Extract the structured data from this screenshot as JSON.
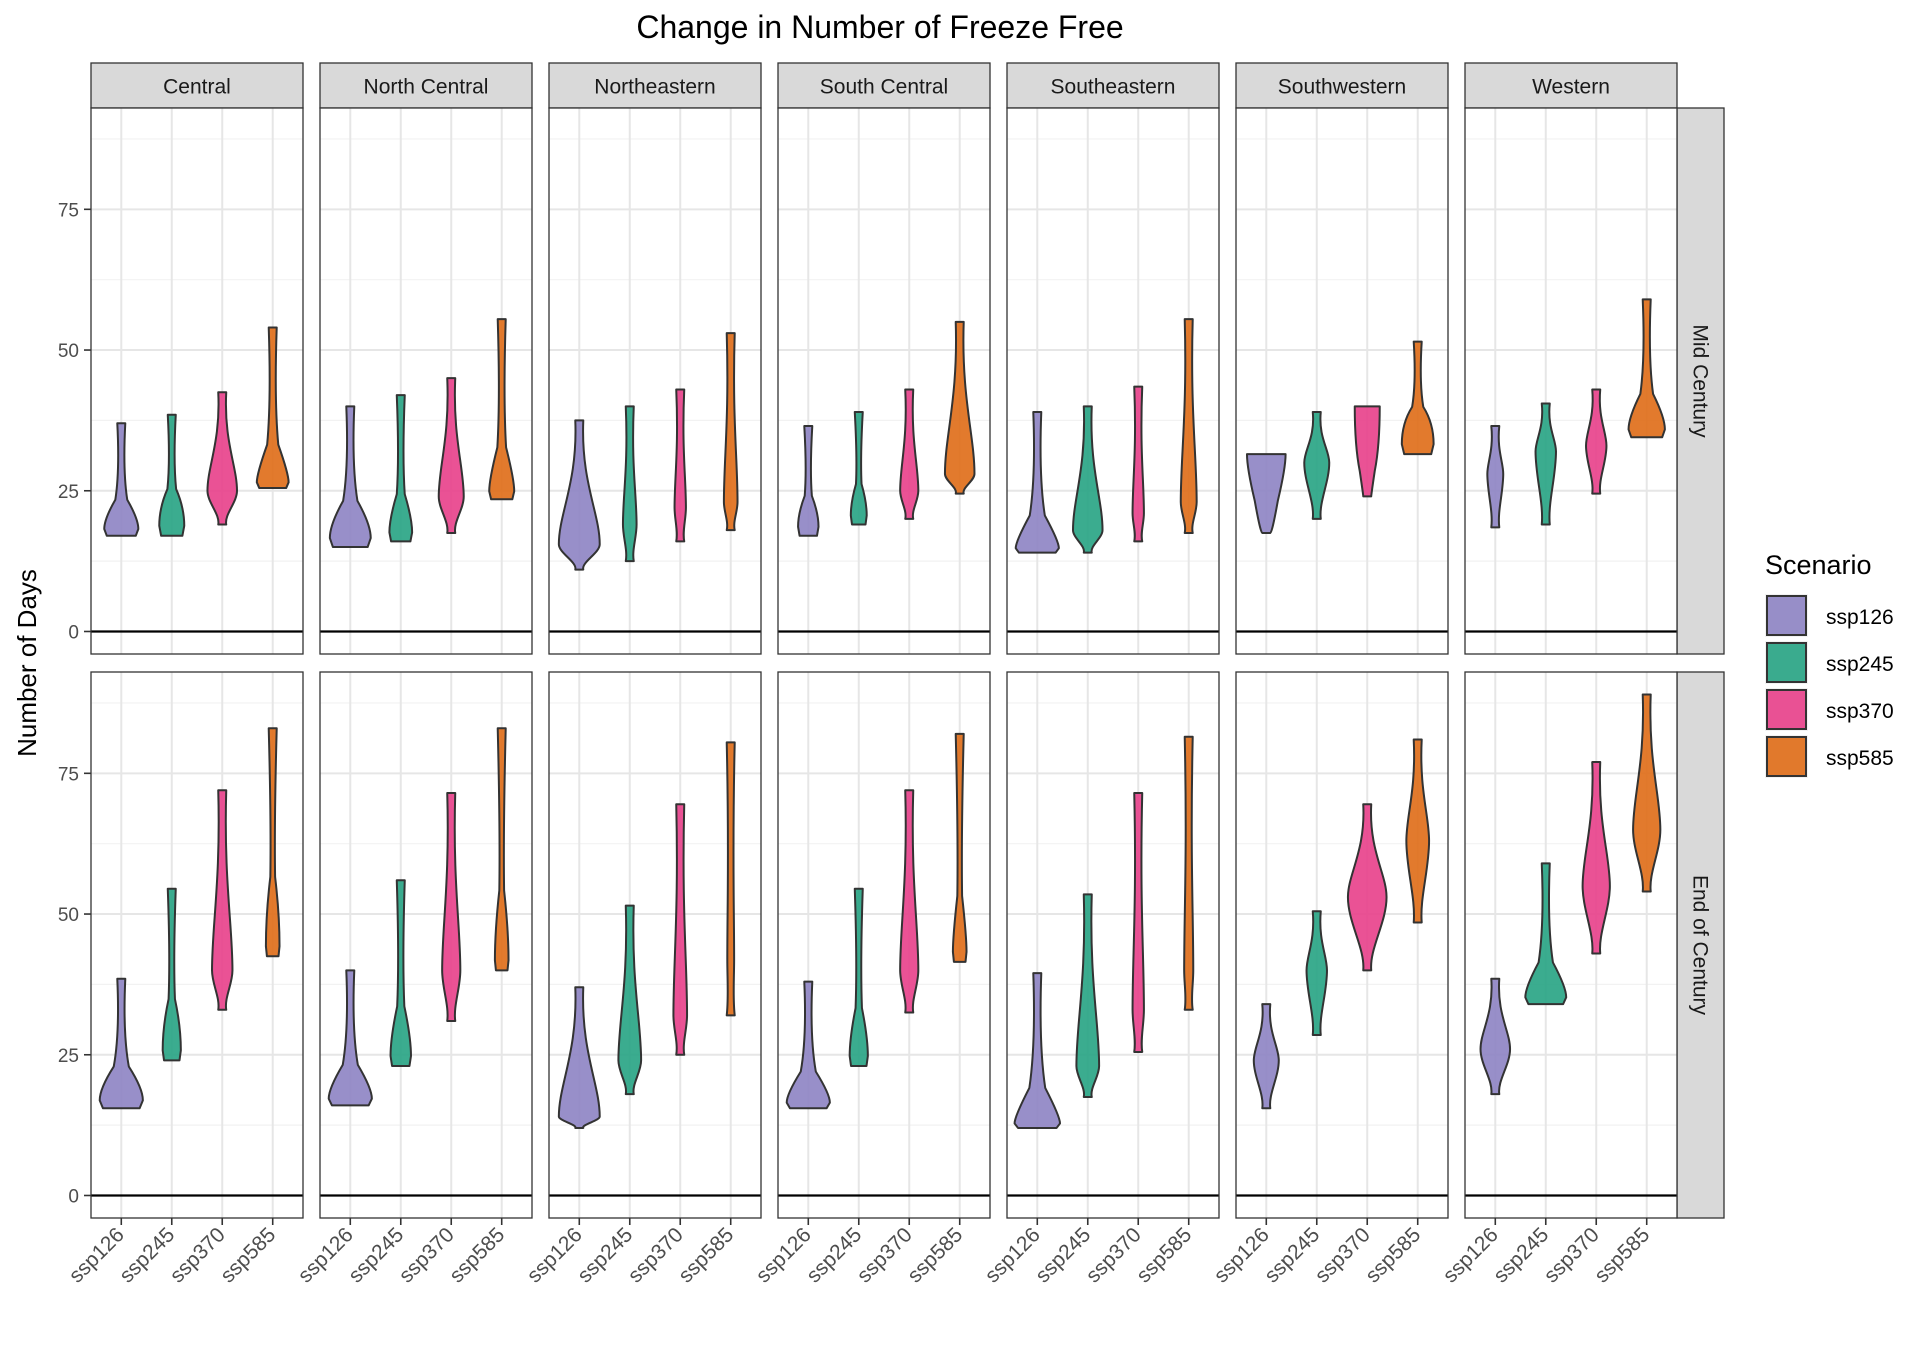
{
  "chart_data": {
    "type": "violin",
    "title": "Change in Number of Freeze Free",
    "ylabel": "Number of Days",
    "xlabel": "",
    "ylim": [
      -4,
      93
    ],
    "yticks": [
      0,
      25,
      50,
      75
    ],
    "grid": true,
    "reference_line_y": 0,
    "legend": {
      "title": "Scenario",
      "position": "right"
    },
    "categories": [
      "ssp126",
      "ssp245",
      "ssp370",
      "ssp585"
    ],
    "colors": {
      "ssp126": "#8F86C4",
      "ssp245": "#2AA585",
      "ssp370": "#E8438C",
      "ssp585": "#DF6F1B"
    },
    "columns": [
      "Central",
      "North Central",
      "Northeastern",
      "South Central",
      "Southeastern",
      "Southwestern",
      "Western"
    ],
    "rows": [
      "Mid Century",
      "End of Century"
    ],
    "panels": [
      {
        "row": "Mid Century",
        "column": "Central",
        "violins": [
          {
            "scenario": "ssp126",
            "min": 17,
            "max": 37,
            "peak": 20,
            "width": 0.75,
            "shape": "bottom"
          },
          {
            "scenario": "ssp245",
            "min": 17,
            "max": 38.5,
            "peak": 22,
            "width": 0.55,
            "shape": "bottom"
          },
          {
            "scenario": "ssp370",
            "min": 19,
            "max": 42.5,
            "peak": 25,
            "width": 0.65,
            "shape": "center"
          },
          {
            "scenario": "ssp585",
            "min": 25.5,
            "max": 54,
            "peak": 28,
            "width": 0.7,
            "shape": "bottom"
          }
        ]
      },
      {
        "row": "Mid Century",
        "column": "North Central",
        "violins": [
          {
            "scenario": "ssp126",
            "min": 15,
            "max": 40,
            "peak": 19,
            "width": 0.9,
            "shape": "bottom"
          },
          {
            "scenario": "ssp245",
            "min": 16,
            "max": 42,
            "peak": 20,
            "width": 0.5,
            "shape": "bottom"
          },
          {
            "scenario": "ssp370",
            "min": 17.5,
            "max": 45,
            "peak": 24,
            "width": 0.55,
            "shape": "center"
          },
          {
            "scenario": "ssp585",
            "min": 23.5,
            "max": 55.5,
            "peak": 27,
            "width": 0.55,
            "shape": "bottom"
          }
        ]
      },
      {
        "row": "Mid Century",
        "column": "Northeastern",
        "violins": [
          {
            "scenario": "ssp126",
            "min": 11,
            "max": 37.5,
            "peak": 15.5,
            "width": 0.9,
            "shape": "center"
          },
          {
            "scenario": "ssp245",
            "min": 12.5,
            "max": 40,
            "peak": 19,
            "width": 0.3,
            "shape": "center"
          },
          {
            "scenario": "ssp370",
            "min": 16,
            "max": 43,
            "peak": 22,
            "width": 0.25,
            "shape": "center"
          },
          {
            "scenario": "ssp585",
            "min": 18,
            "max": 53,
            "peak": 23,
            "width": 0.3,
            "shape": "center"
          }
        ]
      },
      {
        "row": "Mid Century",
        "column": "South Central",
        "violins": [
          {
            "scenario": "ssp126",
            "min": 17,
            "max": 36.5,
            "peak": 21,
            "width": 0.45,
            "shape": "bottom"
          },
          {
            "scenario": "ssp245",
            "min": 19,
            "max": 39,
            "peak": 23,
            "width": 0.35,
            "shape": "bottom"
          },
          {
            "scenario": "ssp370",
            "min": 20,
            "max": 43,
            "peak": 25,
            "width": 0.4,
            "shape": "center"
          },
          {
            "scenario": "ssp585",
            "min": 24.5,
            "max": 55,
            "peak": 28,
            "width": 0.65,
            "shape": "center"
          }
        ]
      },
      {
        "row": "Mid Century",
        "column": "Southeastern",
        "violins": [
          {
            "scenario": "ssp126",
            "min": 14,
            "max": 39,
            "peak": 16,
            "width": 0.95,
            "shape": "bottom"
          },
          {
            "scenario": "ssp245",
            "min": 14,
            "max": 40,
            "peak": 18,
            "width": 0.65,
            "shape": "center"
          },
          {
            "scenario": "ssp370",
            "min": 16,
            "max": 43.5,
            "peak": 21,
            "width": 0.25,
            "shape": "center"
          },
          {
            "scenario": "ssp585",
            "min": 17.5,
            "max": 55.5,
            "peak": 23,
            "width": 0.35,
            "shape": "center"
          }
        ]
      },
      {
        "row": "Mid Century",
        "column": "Southwestern",
        "violins": [
          {
            "scenario": "ssp126",
            "min": 17.5,
            "max": 31.5,
            "peak": 29,
            "width": 0.85,
            "shape": "top"
          },
          {
            "scenario": "ssp245",
            "min": 20,
            "max": 39,
            "peak": 30,
            "width": 0.55,
            "shape": "center"
          },
          {
            "scenario": "ssp370",
            "min": 24,
            "max": 40,
            "peak": 33,
            "width": 0.55,
            "shape": "top"
          },
          {
            "scenario": "ssp585",
            "min": 31.5,
            "max": 51.5,
            "peak": 37,
            "width": 0.7,
            "shape": "bottom"
          }
        ]
      },
      {
        "row": "Mid Century",
        "column": "Western",
        "violins": [
          {
            "scenario": "ssp126",
            "min": 18.5,
            "max": 36.5,
            "peak": 28,
            "width": 0.35,
            "shape": "center"
          },
          {
            "scenario": "ssp245",
            "min": 19,
            "max": 40.5,
            "peak": 32,
            "width": 0.45,
            "shape": "center"
          },
          {
            "scenario": "ssp370",
            "min": 24.5,
            "max": 43,
            "peak": 33,
            "width": 0.45,
            "shape": "center"
          },
          {
            "scenario": "ssp585",
            "min": 34.5,
            "max": 59,
            "peak": 38,
            "width": 0.8,
            "shape": "bottom"
          }
        ]
      },
      {
        "row": "End of Century",
        "column": "Central",
        "violins": [
          {
            "scenario": "ssp126",
            "min": 15.5,
            "max": 38.5,
            "peak": 19,
            "width": 0.95,
            "shape": "bottom"
          },
          {
            "scenario": "ssp245",
            "min": 24,
            "max": 54.5,
            "peak": 30,
            "width": 0.4,
            "shape": "bottom"
          },
          {
            "scenario": "ssp370",
            "min": 33,
            "max": 72,
            "peak": 40,
            "width": 0.45,
            "shape": "center"
          },
          {
            "scenario": "ssp585",
            "min": 42.5,
            "max": 83,
            "peak": 50,
            "width": 0.3,
            "shape": "bottom"
          }
        ]
      },
      {
        "row": "End of Century",
        "column": "North Central",
        "violins": [
          {
            "scenario": "ssp126",
            "min": 16,
            "max": 40,
            "peak": 19,
            "width": 0.95,
            "shape": "bottom"
          },
          {
            "scenario": "ssp245",
            "min": 23,
            "max": 56,
            "peak": 28,
            "width": 0.45,
            "shape": "bottom"
          },
          {
            "scenario": "ssp370",
            "min": 31,
            "max": 71.5,
            "peak": 40,
            "width": 0.4,
            "shape": "center"
          },
          {
            "scenario": "ssp585",
            "min": 40,
            "max": 83,
            "peak": 47,
            "width": 0.3,
            "shape": "bottom"
          }
        ]
      },
      {
        "row": "End of Century",
        "column": "Northeastern",
        "violins": [
          {
            "scenario": "ssp126",
            "min": 12,
            "max": 37,
            "peak": 14,
            "width": 0.9,
            "shape": "center"
          },
          {
            "scenario": "ssp245",
            "min": 18,
            "max": 51.5,
            "peak": 24,
            "width": 0.5,
            "shape": "center"
          },
          {
            "scenario": "ssp370",
            "min": 25,
            "max": 69.5,
            "peak": 32,
            "width": 0.3,
            "shape": "center"
          },
          {
            "scenario": "ssp585",
            "min": 32,
            "max": 80.5,
            "peak": 42,
            "width": 0.15,
            "shape": "center"
          }
        ]
      },
      {
        "row": "End of Century",
        "column": "South Central",
        "violins": [
          {
            "scenario": "ssp126",
            "min": 15.5,
            "max": 38,
            "peak": 18,
            "width": 0.95,
            "shape": "bottom"
          },
          {
            "scenario": "ssp245",
            "min": 23,
            "max": 54.5,
            "peak": 28,
            "width": 0.4,
            "shape": "bottom"
          },
          {
            "scenario": "ssp370",
            "min": 32.5,
            "max": 72,
            "peak": 40,
            "width": 0.4,
            "shape": "center"
          },
          {
            "scenario": "ssp585",
            "min": 41.5,
            "max": 82,
            "peak": 46,
            "width": 0.3,
            "shape": "bottom"
          }
        ]
      },
      {
        "row": "End of Century",
        "column": "Southeastern",
        "violins": [
          {
            "scenario": "ssp126",
            "min": 12,
            "max": 39.5,
            "peak": 14,
            "width": 1.0,
            "shape": "bottom"
          },
          {
            "scenario": "ssp245",
            "min": 17.5,
            "max": 53.5,
            "peak": 23,
            "width": 0.5,
            "shape": "center"
          },
          {
            "scenario": "ssp370",
            "min": 25.5,
            "max": 71.5,
            "peak": 33,
            "width": 0.25,
            "shape": "center"
          },
          {
            "scenario": "ssp585",
            "min": 33,
            "max": 81.5,
            "peak": 40,
            "width": 0.2,
            "shape": "center"
          }
        ]
      },
      {
        "row": "End of Century",
        "column": "Southwestern",
        "violins": [
          {
            "scenario": "ssp126",
            "min": 15.5,
            "max": 34,
            "peak": 24,
            "width": 0.55,
            "shape": "center"
          },
          {
            "scenario": "ssp245",
            "min": 28.5,
            "max": 50.5,
            "peak": 40,
            "width": 0.45,
            "shape": "center"
          },
          {
            "scenario": "ssp370",
            "min": 40,
            "max": 69.5,
            "peak": 53,
            "width": 0.85,
            "shape": "center"
          },
          {
            "scenario": "ssp585",
            "min": 48.5,
            "max": 81,
            "peak": 63,
            "width": 0.5,
            "shape": "center"
          }
        ]
      },
      {
        "row": "End of Century",
        "column": "Western",
        "violins": [
          {
            "scenario": "ssp126",
            "min": 18,
            "max": 38.5,
            "peak": 26,
            "width": 0.65,
            "shape": "center"
          },
          {
            "scenario": "ssp245",
            "min": 34,
            "max": 59,
            "peak": 37,
            "width": 0.9,
            "shape": "bottom"
          },
          {
            "scenario": "ssp370",
            "min": 43,
            "max": 77,
            "peak": 55,
            "width": 0.6,
            "shape": "center"
          },
          {
            "scenario": "ssp585",
            "min": 54,
            "max": 89,
            "peak": 65,
            "width": 0.6,
            "shape": "center"
          }
        ]
      }
    ]
  }
}
